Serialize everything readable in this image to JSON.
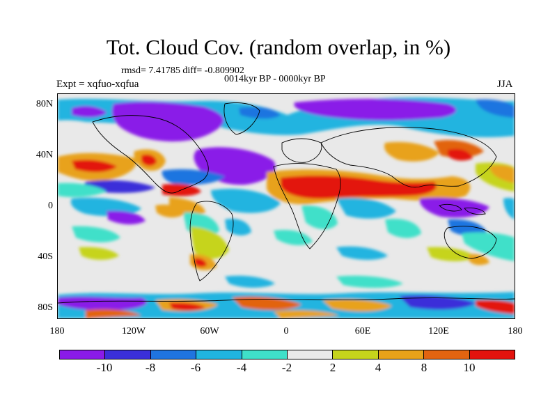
{
  "header": {
    "title": "Tot. Cloud Cov. (random overlap, in %)",
    "stats": "rmsd= 7.41785 diff= -0.809902",
    "period": "0014kyr BP - 0000kyr BP",
    "experiment": "Expt = xqfuo-xqfua",
    "season": "JJA"
  },
  "map": {
    "lat_ticks": [
      "80N",
      "40N",
      "0",
      "40S",
      "80S"
    ],
    "lon_ticks": [
      "180",
      "120W",
      "60W",
      "0",
      "60E",
      "120E",
      "180"
    ],
    "colors": {
      "background": "#e9e9e9",
      "coastline": "#000000"
    }
  },
  "colorbar": {
    "labels": [
      "-10",
      "-8",
      "-6",
      "-4",
      "-2",
      "2",
      "4",
      "8",
      "10"
    ],
    "colors": [
      "#8a1be8",
      "#3a2fd9",
      "#1f74e0",
      "#20b4e0",
      "#3fe0c9",
      "#e9e9e9",
      "#c6d41c",
      "#e8a21a",
      "#e26410",
      "#e3130e"
    ]
  }
}
